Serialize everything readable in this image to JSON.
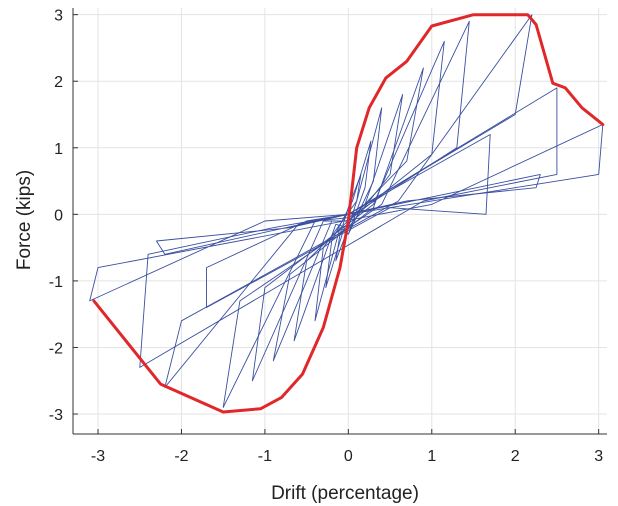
{
  "chart_data": {
    "type": "line",
    "title": "",
    "xlabel": "Drift (percentage)",
    "ylabel": "Force (kips)",
    "xlim": [
      -3.3,
      3.1
    ],
    "ylim": [
      -3.3,
      3.1
    ],
    "xticks": [
      -3,
      -2,
      -1,
      0,
      1,
      2,
      3
    ],
    "yticks": [
      -3,
      -2,
      -1,
      0,
      1,
      2,
      3
    ],
    "xtick_labels": [
      "-3",
      "-2",
      "-1",
      "0",
      "1",
      "2",
      "3"
    ],
    "ytick_labels": [
      "-3",
      "-2",
      "-1",
      "0",
      "1",
      "2",
      "3"
    ],
    "grid": true,
    "legend": "none",
    "series": [
      {
        "role": "hysteresis",
        "color": "#3a4fa0",
        "loops": [
          {
            "xs": [
              0.0,
              0.1,
              0.15,
              0.0,
              -0.1,
              -0.15,
              0.0
            ],
            "ys": [
              -0.2,
              0.2,
              0.6,
              0.1,
              -0.3,
              -0.7,
              -0.2
            ]
          },
          {
            "xs": [
              0.0,
              0.2,
              0.27,
              0.05,
              -0.2,
              -0.27,
              -0.05,
              0.0
            ],
            "ys": [
              -0.3,
              0.4,
              1.1,
              0.2,
              -0.4,
              -1.1,
              -0.2,
              -0.3
            ]
          },
          {
            "xs": [
              0.0,
              0.3,
              0.4,
              0.1,
              -0.3,
              -0.4,
              -0.1,
              0.0
            ],
            "ys": [
              -0.3,
              0.5,
              1.6,
              0.2,
              -0.5,
              -1.6,
              -0.2,
              -0.3
            ]
          },
          {
            "xs": [
              0.0,
              0.5,
              0.65,
              0.2,
              -0.5,
              -0.65,
              -0.15,
              0.0
            ],
            "ys": [
              -0.2,
              0.6,
              1.8,
              0.15,
              -0.7,
              -1.9,
              -0.15,
              -0.2
            ]
          },
          {
            "xs": [
              0.0,
              0.7,
              0.9,
              0.3,
              -0.7,
              -0.9,
              -0.2,
              0.0
            ],
            "ys": [
              -0.1,
              0.8,
              2.2,
              0.1,
              -0.9,
              -2.2,
              -0.1,
              -0.1
            ]
          },
          {
            "xs": [
              0.0,
              1.0,
              1.15,
              0.3,
              -1.0,
              -1.15,
              -0.3,
              0.0
            ],
            "ys": [
              -0.1,
              0.9,
              2.6,
              0.15,
              -1.1,
              -2.5,
              -0.1,
              -0.1
            ]
          },
          {
            "xs": [
              0.0,
              1.3,
              1.45,
              0.4,
              -1.3,
              -1.5,
              -0.4,
              0.0
            ],
            "ys": [
              -0.05,
              1.0,
              2.9,
              0.15,
              -1.3,
              -2.9,
              -0.1,
              -0.05
            ]
          },
          {
            "xs": [
              0.0,
              1.7,
              1.65,
              0.5,
              -1.7,
              -1.7,
              -0.5,
              0.0
            ],
            "ys": [
              0.0,
              1.2,
              0.0,
              0.1,
              -1.4,
              -0.8,
              -0.1,
              0.0
            ]
          },
          {
            "xs": [
              0.0,
              2.0,
              2.2,
              0.6,
              -2.0,
              -2.2,
              -0.6,
              0.0
            ],
            "ys": [
              0.0,
              1.5,
              3.0,
              0.2,
              -1.6,
              -2.6,
              -0.15,
              0.0
            ]
          },
          {
            "xs": [
              0.0,
              2.3,
              2.25,
              0.7,
              -2.2,
              -2.3,
              -0.7,
              0.0
            ],
            "ys": [
              0.0,
              0.6,
              0.4,
              0.2,
              -0.6,
              -0.4,
              -0.2,
              0.0
            ]
          },
          {
            "xs": [
              0.0,
              2.5,
              2.5,
              0.9,
              -2.5,
              -2.4,
              -0.9,
              0.0
            ],
            "ys": [
              0.0,
              1.9,
              0.6,
              0.2,
              -2.3,
              -0.6,
              -0.2,
              0.0
            ]
          },
          {
            "xs": [
              0.0,
              3.0,
              3.05,
              1.0,
              -3.0,
              -3.1,
              -1.0,
              0.0
            ],
            "ys": [
              0.0,
              0.6,
              1.35,
              0.15,
              -0.8,
              -1.3,
              -0.1,
              0.0
            ]
          }
        ]
      },
      {
        "role": "backbone envelope",
        "color": "#e0282a",
        "x": [
          -3.05,
          -2.25,
          -1.5,
          -1.05,
          -0.8,
          -0.55,
          -0.3,
          -0.1,
          0.0,
          0.1,
          0.25,
          0.45,
          0.7,
          1.0,
          1.5,
          2.15,
          2.25,
          2.45,
          2.6,
          2.8,
          3.0,
          3.05
        ],
        "y": [
          -1.3,
          -2.55,
          -2.97,
          -2.92,
          -2.75,
          -2.4,
          -1.7,
          -0.8,
          -0.1,
          1.0,
          1.6,
          2.05,
          2.3,
          2.83,
          3.0,
          3.0,
          2.85,
          1.97,
          1.9,
          1.6,
          1.4,
          1.35
        ]
      }
    ]
  }
}
